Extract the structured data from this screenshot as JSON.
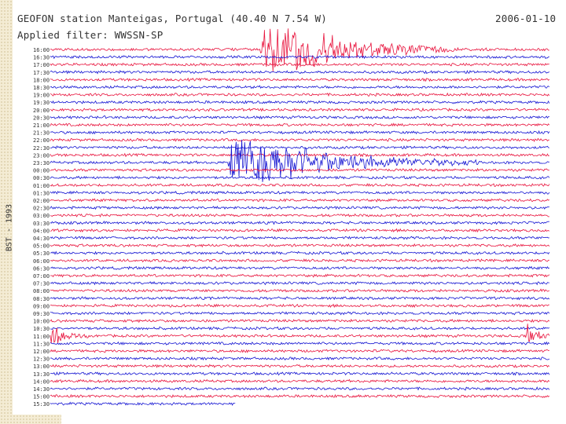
{
  "header": {
    "title": "GEOFON station Manteigas, Portugal (40.40 N 7.54 W)",
    "filter": "Applied filter: WWSSN-SP",
    "date": "2006-01-10"
  },
  "chart_data": {
    "type": "line",
    "title": "GEOFON station Manteigas, Portugal (40.40 N 7.54 W)",
    "subtitle": "Applied filter: WWSSN-SP",
    "date": "2006-01-10",
    "timezone_label": "BST - 1993",
    "ylabel": "",
    "xlabel": "",
    "line_colors": [
      "#e8123c",
      "#1414d2"
    ],
    "row_times": [
      "16:00",
      "16:30",
      "17:00",
      "17:30",
      "18:00",
      "18:30",
      "19:00",
      "19:30",
      "20:00",
      "20:30",
      "21:00",
      "21:30",
      "22:00",
      "22:30",
      "23:00",
      "23:30",
      "00:00",
      "00:30",
      "01:00",
      "01:30",
      "02:00",
      "02:30",
      "03:00",
      "03:30",
      "04:00",
      "04:30",
      "05:00",
      "05:30",
      "06:00",
      "06:30",
      "07:00",
      "07:30",
      "08:00",
      "08:30",
      "09:00",
      "09:30",
      "10:00",
      "10:30",
      "11:00",
      "11:30",
      "12:00",
      "12:30",
      "13:00",
      "13:30",
      "14:00",
      "14:30",
      "15:00",
      "15:30"
    ],
    "events": [
      {
        "row": 0,
        "onset": 0.42,
        "amplitude": 1.0,
        "duration": 0.4
      },
      {
        "row": 15,
        "onset": 0.355,
        "amplitude": 0.95,
        "duration": 0.5
      },
      {
        "row": 38,
        "onset": 0.0,
        "amplitude": 0.35,
        "duration": 0.08
      },
      {
        "row": 38,
        "onset": 0.95,
        "amplitude": 0.4,
        "duration": 0.05
      }
    ],
    "last_row_length": 0.37
  }
}
